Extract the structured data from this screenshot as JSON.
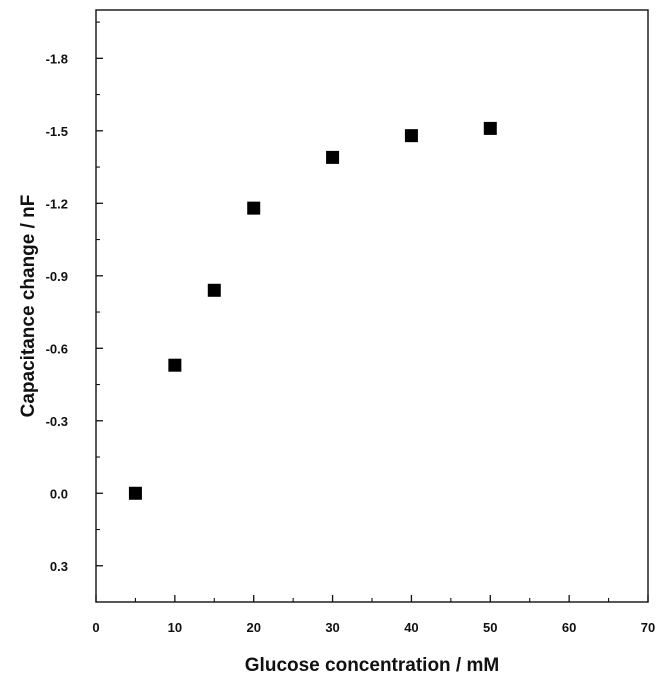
{
  "chart_data": {
    "type": "scatter",
    "title": "",
    "xlabel": "Glucose concentration / mM",
    "ylabel": "Capacitance change / nF",
    "xlim": [
      0,
      70
    ],
    "ylim": [
      0.45,
      -2.0
    ],
    "y_axis_inverted": true,
    "x_ticks": [
      0,
      10,
      20,
      30,
      40,
      50,
      60,
      70
    ],
    "x_tick_labels": [
      "0",
      "10",
      "20",
      "30",
      "40",
      "50",
      "60",
      "70"
    ],
    "y_ticks": [
      0.3,
      0.0,
      -0.3,
      -0.6,
      -0.9,
      -1.2,
      -1.5,
      -1.8
    ],
    "y_tick_labels": [
      "0.3",
      "0.0",
      "-0.3",
      "-0.6",
      "-0.9",
      "-1.2",
      "-1.5",
      "-1.8"
    ],
    "grid": false,
    "marker": "filled-square",
    "marker_color": "#000000",
    "series": [
      {
        "x": [
          5,
          10,
          15,
          20,
          30,
          40,
          50
        ],
        "y": [
          0.0,
          -0.53,
          -0.84,
          -1.18,
          -1.39,
          -1.48,
          -1.51
        ]
      }
    ]
  }
}
